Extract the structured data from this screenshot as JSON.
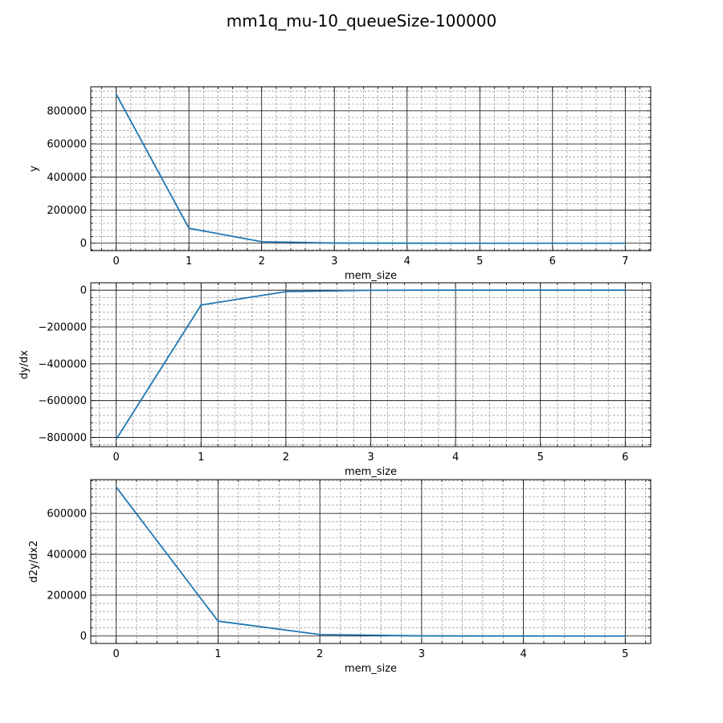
{
  "title": "mm1q_mu-10_queueSize-100000",
  "colors": {
    "line": "#1f77b4",
    "major_grid": "#000000",
    "minor_grid": "#808080"
  },
  "chart_data": [
    {
      "type": "line",
      "xlabel": "mem_size",
      "ylabel": "y",
      "x": [
        0,
        1,
        2,
        3,
        4,
        5,
        6,
        7
      ],
      "series": [
        {
          "values": [
            900000,
            90000,
            9000,
            900,
            90,
            9,
            0.9,
            0.09
          ]
        }
      ],
      "xlim": [
        -0.35,
        7.35
      ],
      "ylim": [
        -45000,
        945000
      ],
      "xticks": [
        0,
        1,
        2,
        3,
        4,
        5,
        6,
        7
      ],
      "yticks": [
        0,
        200000,
        400000,
        600000,
        800000
      ],
      "grid": true
    },
    {
      "type": "line",
      "xlabel": "mem_size",
      "ylabel": "dy/dx",
      "x": [
        0,
        1,
        2,
        3,
        4,
        5,
        6
      ],
      "series": [
        {
          "values": [
            -810000,
            -81000,
            -8100,
            -810,
            -81,
            -8.1,
            -0.81
          ]
        }
      ],
      "xlim": [
        -0.3,
        6.3
      ],
      "ylim": [
        -850000,
        40000
      ],
      "xticks": [
        0,
        1,
        2,
        3,
        4,
        5,
        6
      ],
      "yticks": [
        -800000,
        -600000,
        -400000,
        -200000,
        0
      ],
      "grid": true
    },
    {
      "type": "line",
      "xlabel": "mem_size",
      "ylabel": "d2y/dx2",
      "x": [
        0,
        1,
        2,
        3,
        4,
        5
      ],
      "series": [
        {
          "values": [
            729000,
            72900,
            7290,
            729,
            72.9,
            7.29
          ]
        }
      ],
      "xlim": [
        -0.25,
        5.25
      ],
      "ylim": [
        -36450,
        765450
      ],
      "xticks": [
        0,
        1,
        2,
        3,
        4,
        5
      ],
      "yticks": [
        0,
        200000,
        400000,
        600000
      ],
      "grid": true
    }
  ]
}
